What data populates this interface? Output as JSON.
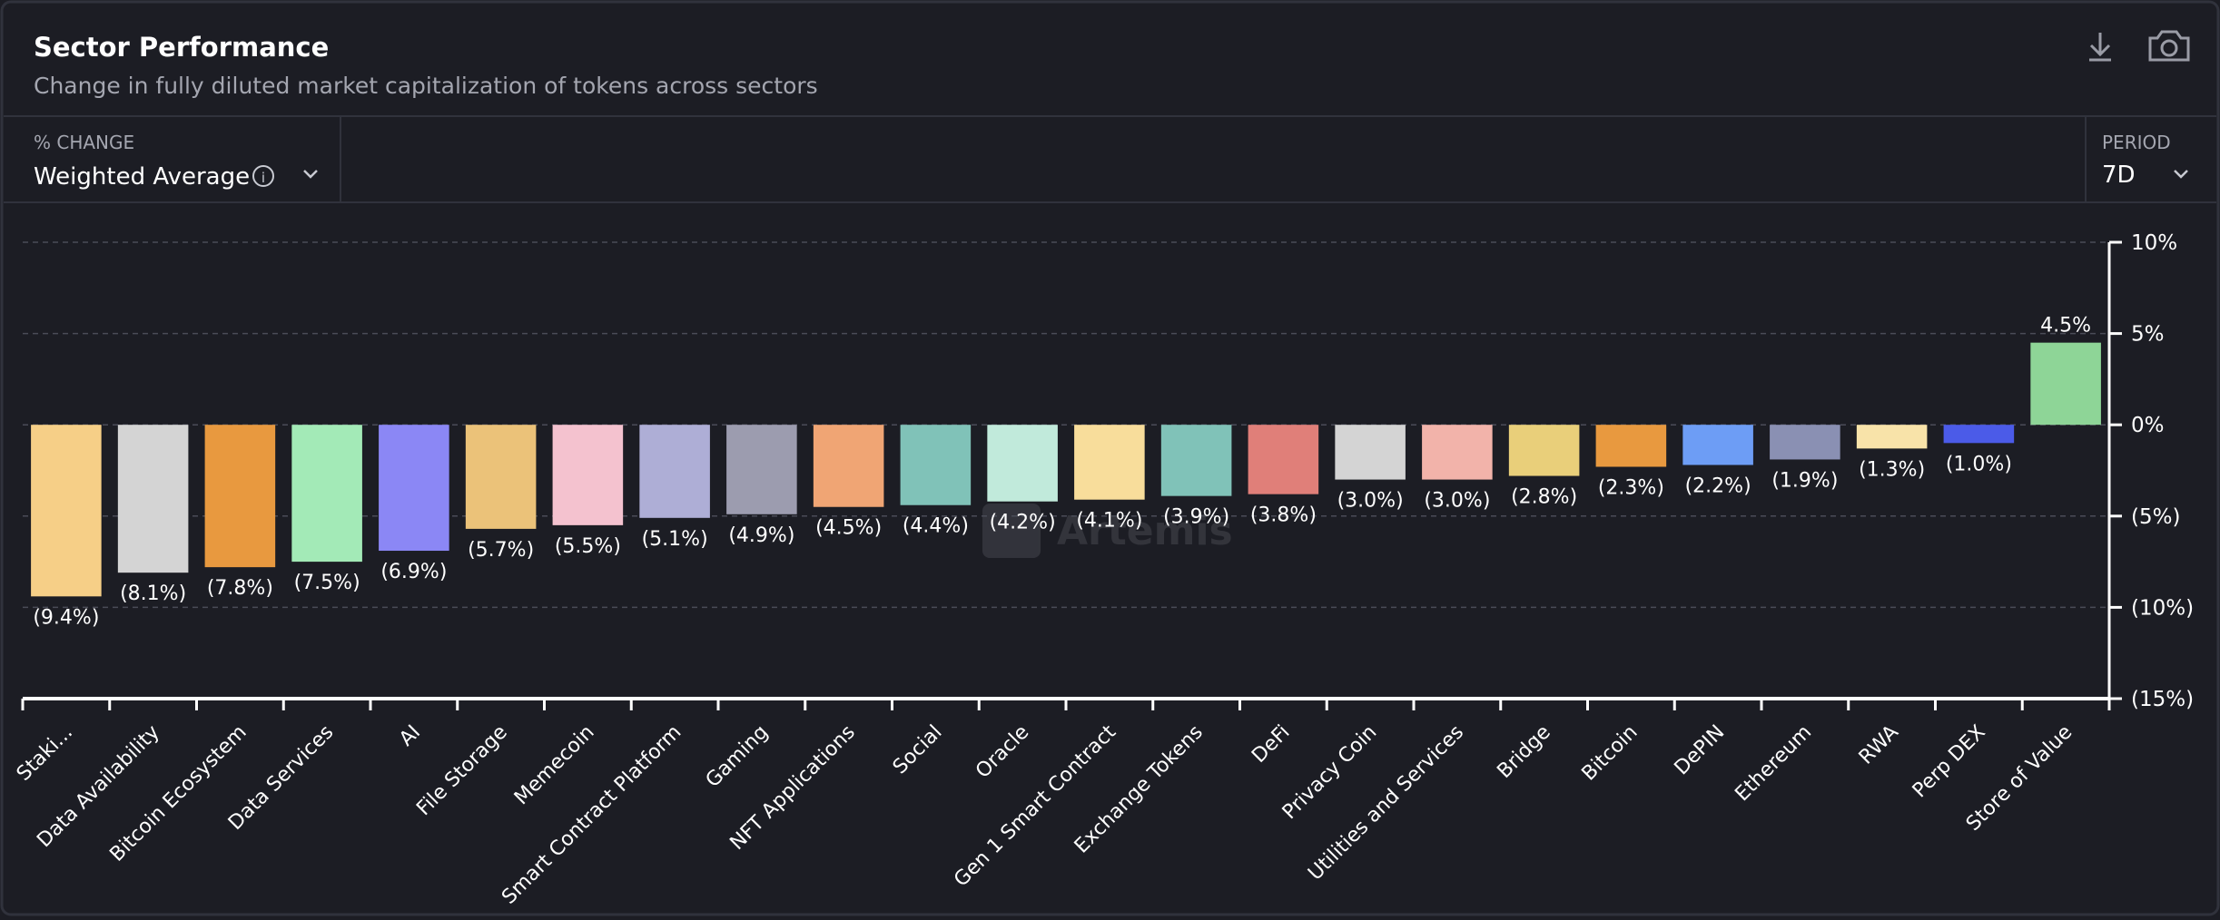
{
  "header": {
    "title": "Sector Performance",
    "subtitle": "Change in fully diluted market capitalization of tokens across sectors"
  },
  "controls": {
    "metric_label": "% CHANGE",
    "metric_value": "Weighted Average",
    "period_label": "PERIOD",
    "period_value": "7D"
  },
  "watermark": "Artemis",
  "chart_data": {
    "type": "bar",
    "categories": [
      "Staki...",
      "Data Availability",
      "Bitcoin Ecosystem",
      "Data Services",
      "AI",
      "File Storage",
      "Memecoin",
      "Smart Contract Platform",
      "Gaming",
      "NFT Applications",
      "Social",
      "Oracle",
      "Gen 1 Smart Contract",
      "Exchange Tokens",
      "DeFi",
      "Privacy Coin",
      "Utilities and Services",
      "Bridge",
      "Bitcoin",
      "DePIN",
      "Ethereum",
      "RWA",
      "Perp DEX",
      "Store of Value"
    ],
    "values": [
      -9.4,
      -8.1,
      -7.8,
      -7.5,
      -6.9,
      -5.7,
      -5.5,
      -5.1,
      -4.9,
      -4.5,
      -4.4,
      -4.2,
      -4.1,
      -3.9,
      -3.8,
      -3.0,
      -3.0,
      -2.8,
      -2.3,
      -2.2,
      -1.9,
      -1.3,
      -1.0,
      4.5
    ],
    "value_labels": [
      "(9.4%)",
      "(8.1%)",
      "(7.8%)",
      "(7.5%)",
      "(6.9%)",
      "(5.7%)",
      "(5.5%)",
      "(5.1%)",
      "(4.9%)",
      "(4.5%)",
      "(4.4%)",
      "(4.2%)",
      "(4.1%)",
      "(3.9%)",
      "(3.8%)",
      "(3.0%)",
      "(3.0%)",
      "(2.8%)",
      "(2.3%)",
      "(2.2%)",
      "(1.9%)",
      "(1.3%)",
      "(1.0%)",
      "4.5%"
    ],
    "colors": [
      "#f6cf87",
      "#d4d4d4",
      "#e8993f",
      "#a3eab7",
      "#8b87f5",
      "#ebc279",
      "#f4c2cf",
      "#aeaed6",
      "#9c9caf",
      "#f0a574",
      "#80c2b8",
      "#c1eadb",
      "#f8dd9b",
      "#80c2b8",
      "#e07f79",
      "#d4d4d4",
      "#f2b3aa",
      "#e9cf7a",
      "#e8993f",
      "#6d9df5",
      "#8a90b3",
      "#f8e3a9",
      "#4b5be8",
      "#8ed597"
    ],
    "ylim": [
      -15,
      10
    ],
    "yticks": [
      {
        "value": 10,
        "label": "10%"
      },
      {
        "value": 5,
        "label": "5%"
      },
      {
        "value": 0,
        "label": "0%"
      },
      {
        "value": -5,
        "label": "(5%)"
      },
      {
        "value": -10,
        "label": "(10%)"
      },
      {
        "value": -15,
        "label": "(15%)"
      }
    ],
    "grid": true
  }
}
